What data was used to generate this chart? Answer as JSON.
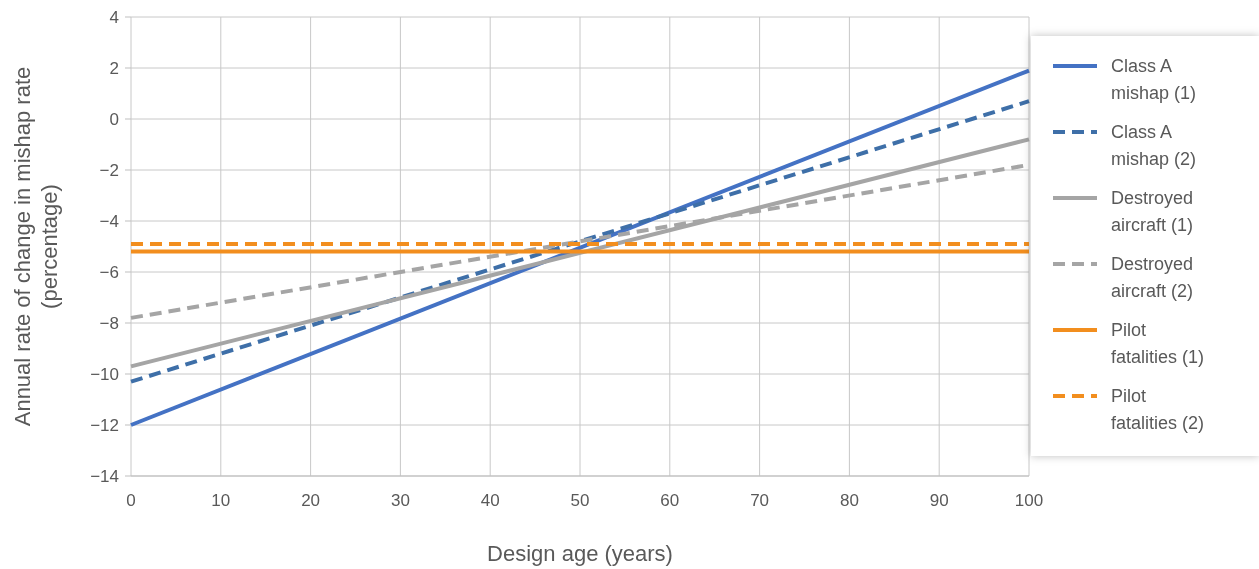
{
  "chart_data": {
    "type": "line",
    "xlabel": "Design age (years)",
    "ylabel": "Annual rate of change in mishap rate (percentage)",
    "xlim": [
      0,
      100
    ],
    "xticks": [
      0,
      10,
      20,
      30,
      40,
      50,
      60,
      70,
      80,
      90,
      100
    ],
    "ylim": [
      -14,
      4
    ],
    "yticks": [
      {
        "value": -14,
        "label": "−14"
      },
      {
        "value": -12,
        "label": "−12"
      },
      {
        "value": -10,
        "label": "−10"
      },
      {
        "value": -8,
        "label": "−8"
      },
      {
        "value": -6,
        "label": "−6"
      },
      {
        "value": -4,
        "label": "−4"
      },
      {
        "value": -2,
        "label": "−2"
      },
      0,
      2,
      4
    ],
    "grid": true,
    "legend": "right",
    "marker": "none",
    "x": [
      0,
      100
    ],
    "series": [
      {
        "name": "Class A mishap (1)",
        "color": "#4472c4",
        "line_style": "solid",
        "values": [
          -12,
          1.9
        ]
      },
      {
        "name": "Class A mishap (2)",
        "color": "#3e6fa8",
        "line_style": "dashed",
        "values": [
          -10.3,
          0.7
        ]
      },
      {
        "name": "Destroyed aircraft (1)",
        "color": "#a5a5a5",
        "line_style": "solid",
        "values": [
          -9.7,
          -0.8
        ]
      },
      {
        "name": "Destroyed aircraft (2)",
        "color": "#a5a5a5",
        "line_style": "dashed",
        "values": [
          -7.8,
          -1.8
        ]
      },
      {
        "name": "Pilot fatalities (1)",
        "color": "#f28e1e",
        "line_style": "solid",
        "values": [
          -5.2,
          -5.2
        ]
      },
      {
        "name": "Pilot fatalities (2)",
        "color": "#f28e1e",
        "line_style": "dashed",
        "values": [
          -4.9,
          -4.9
        ]
      }
    ]
  }
}
